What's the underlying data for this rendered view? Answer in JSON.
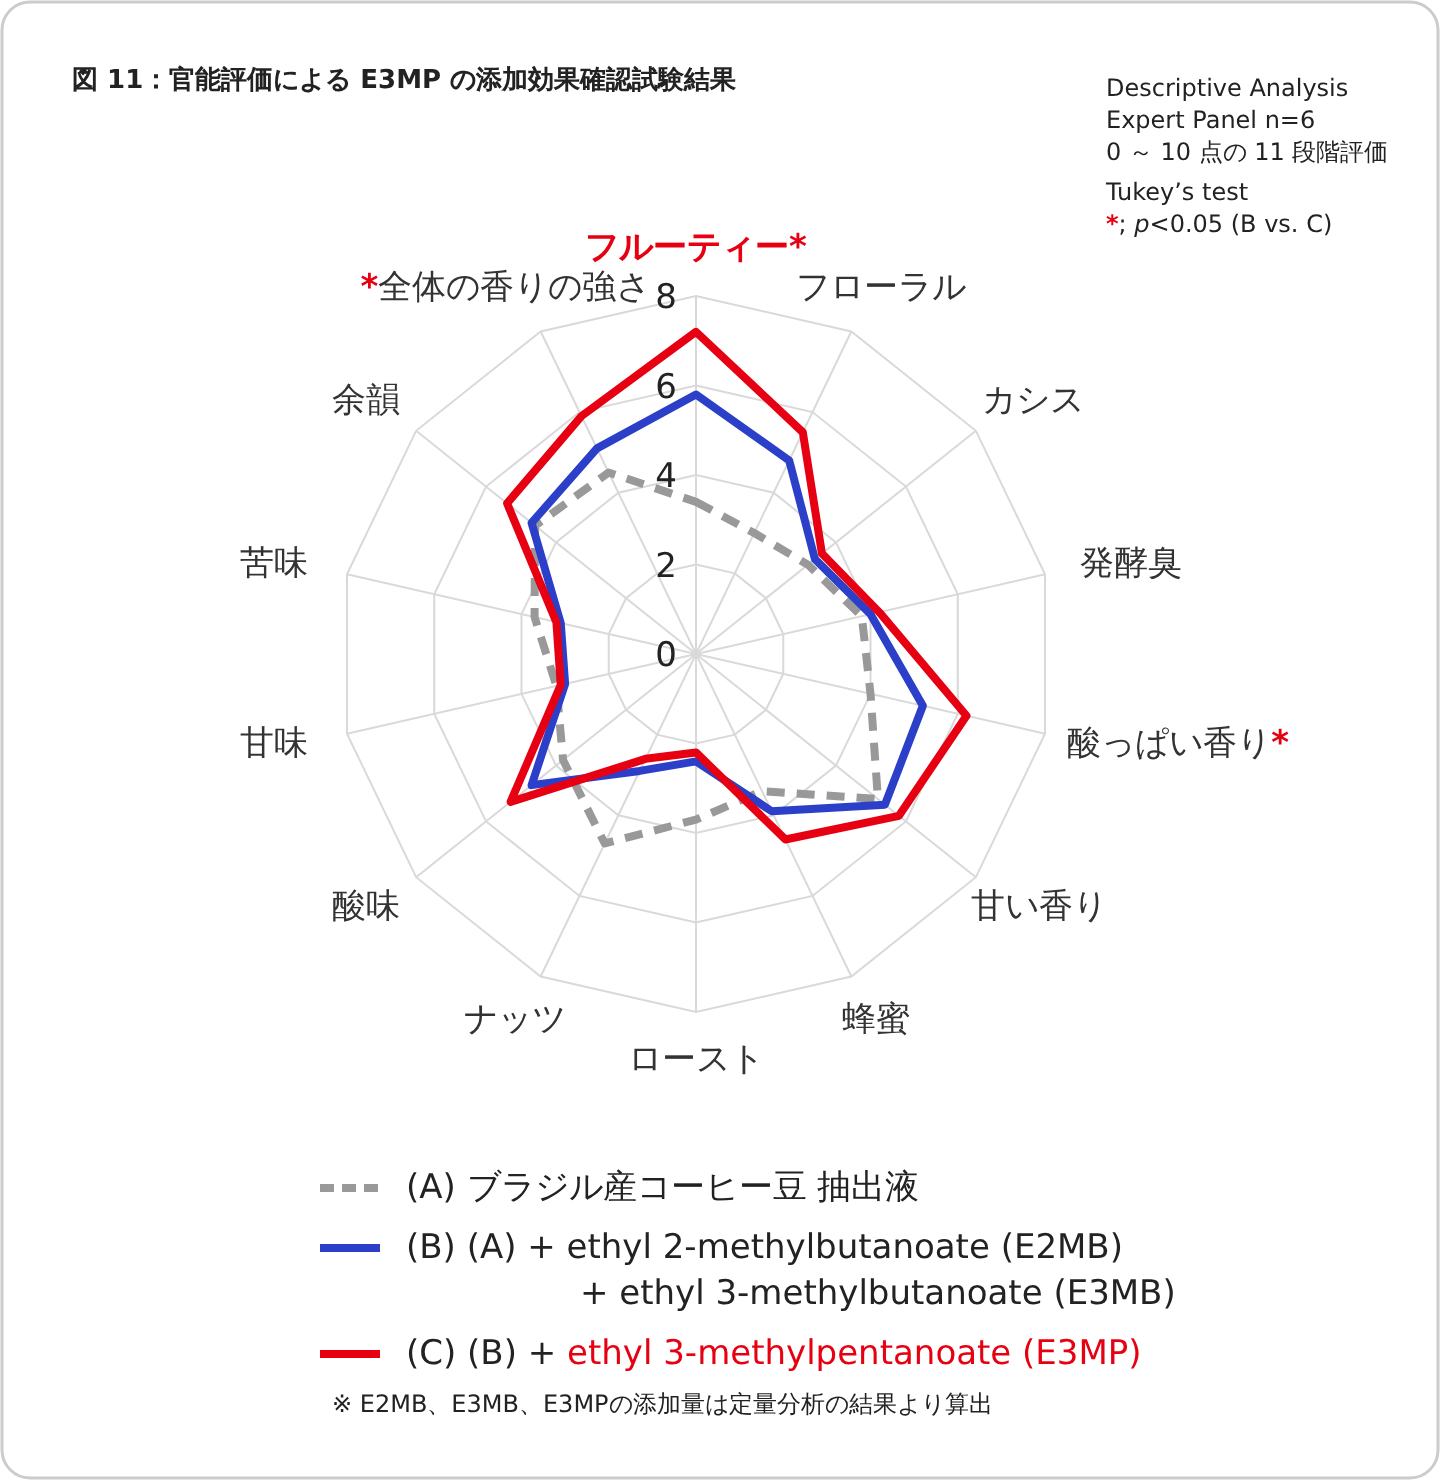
{
  "chart_data": {
    "type": "radar",
    "title": "図 11：官能評価による E3MP の添加効果確認試験結果",
    "categories": [
      "フルーティー*",
      "フローラル",
      "カシス",
      "発酵臭",
      "酸っぱい香り*",
      "甘い香り",
      "蜂蜜",
      "ロースト",
      "ナッツ",
      "酸味",
      "甘味",
      "苦味",
      "余韻",
      "*全体の香りの強さ"
    ],
    "series": [
      {
        "name": "(A) ブラジル産コーヒー豆 抽出液",
        "color": "#999999",
        "line_style": "dashed",
        "values": [
          3.4,
          3.0,
          3.2,
          3.8,
          4.0,
          5.2,
          3.4,
          3.7,
          4.7,
          3.8,
          3.2,
          3.7,
          4.6,
          4.5
        ]
      },
      {
        "name": "(B) (A) + ethyl 2-methylbutanoate (E2MB) + ethyl 3-methylbutanoate (E3MB)",
        "color": "#2b3fc8",
        "line_style": "solid",
        "values": [
          5.8,
          4.8,
          3.4,
          4.0,
          5.2,
          5.4,
          3.9,
          2.4,
          2.9,
          4.7,
          3.0,
          3.1,
          4.7,
          5.1
        ]
      },
      {
        "name": "(C) (B) + ethyl 3-methylpentanoate (E3MP)",
        "color": "#e60012",
        "line_style": "solid",
        "values": [
          7.2,
          5.5,
          3.6,
          4.2,
          6.2,
          5.8,
          4.6,
          2.2,
          2.6,
          5.3,
          3.1,
          3.2,
          5.4,
          5.9
        ]
      }
    ],
    "ylim": [
      0,
      8
    ],
    "yticks": [
      0,
      2,
      4,
      6,
      8
    ],
    "grid": true,
    "legend": "bottom",
    "marker": "none",
    "annotations": [
      "Descriptive Analysis",
      "Expert Panel n=6",
      "0 ～ 10 点の 11 段階評価",
      "Tukey’s test",
      "*; *p*<0.05  (B vs. C)",
      "※ E2MB、E3MB、E3MPの添加量は定量分析の結果より算出"
    ]
  }
}
